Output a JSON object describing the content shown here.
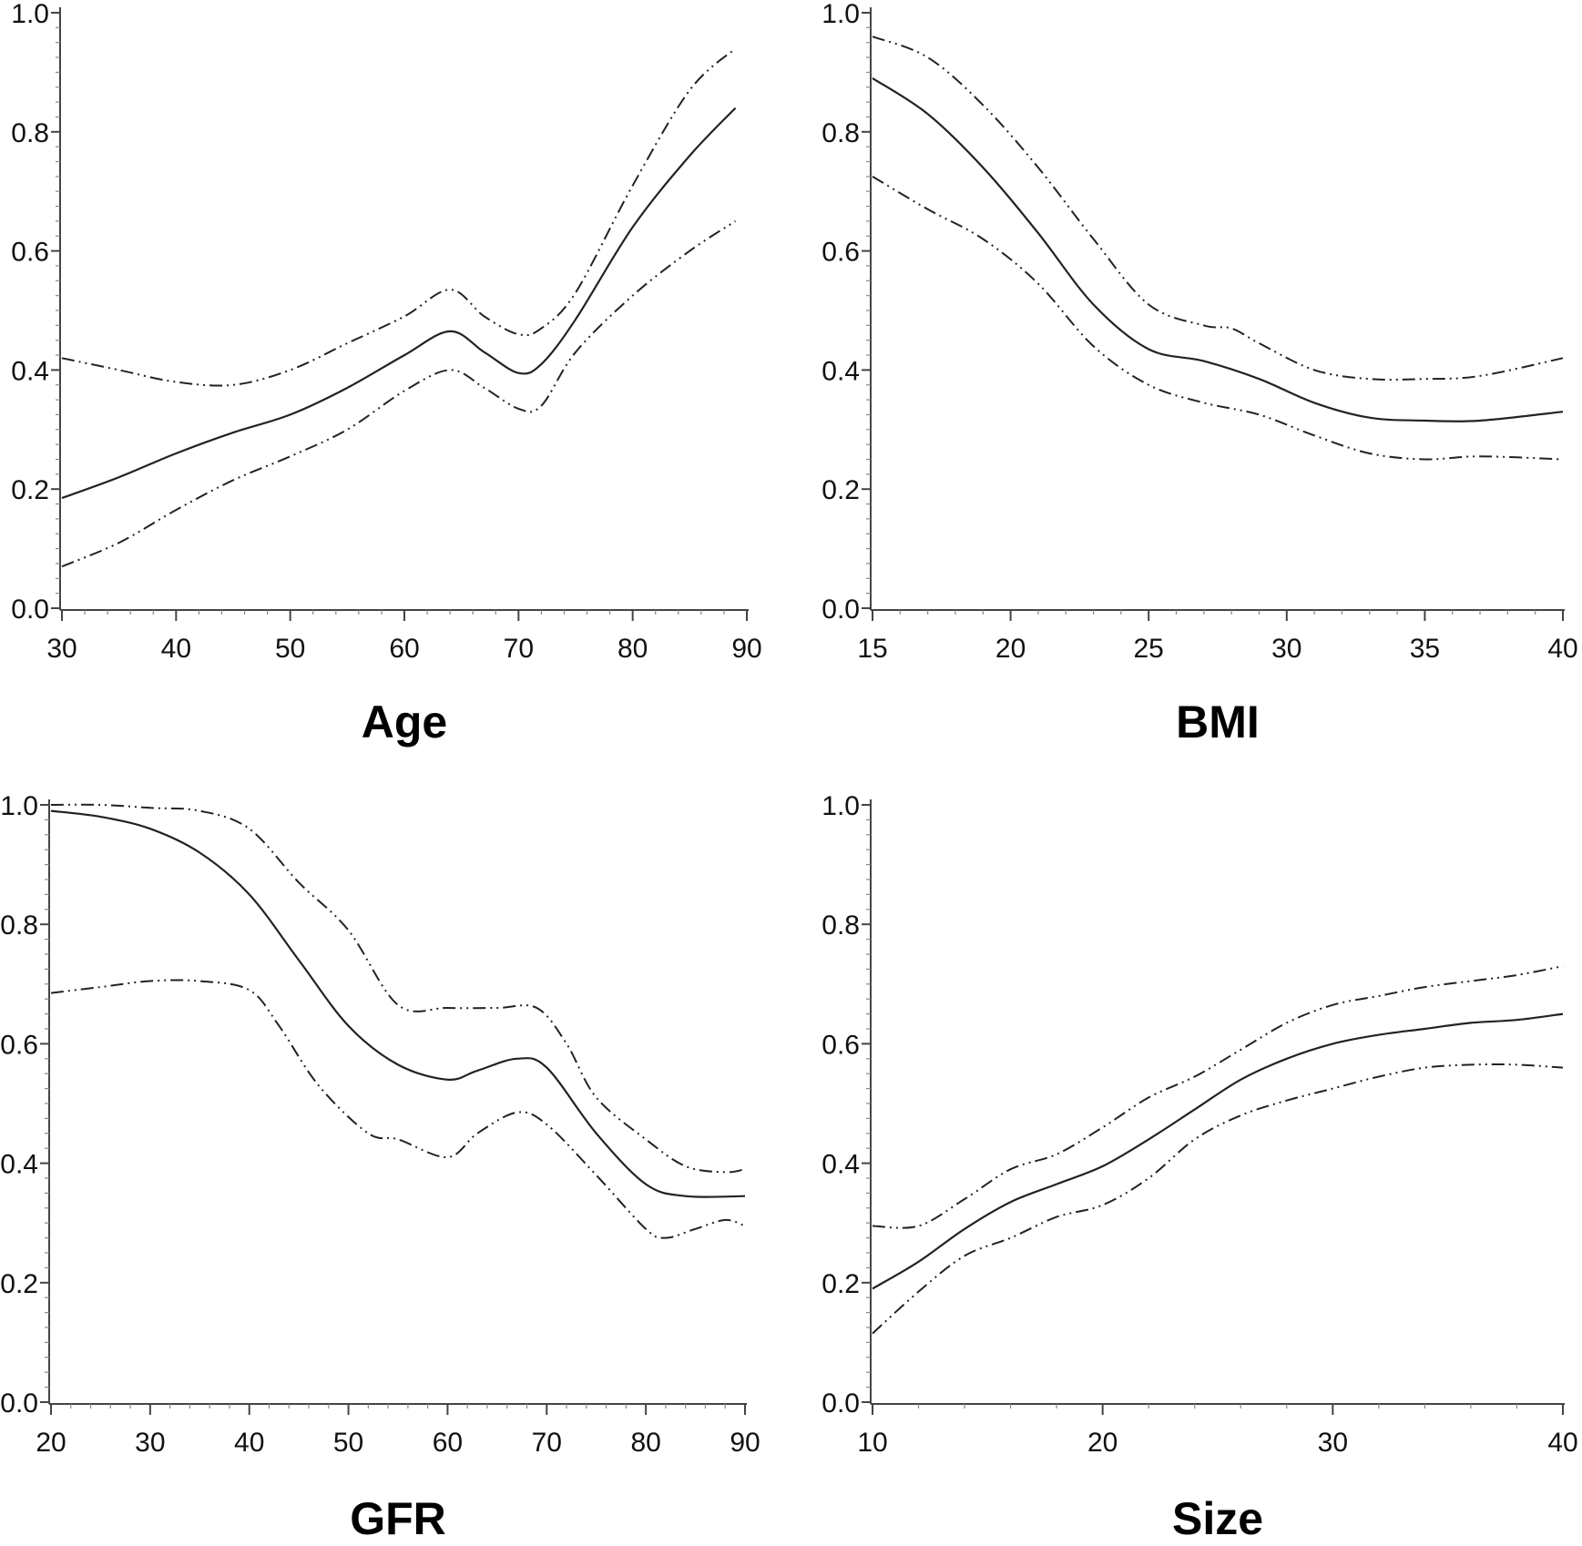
{
  "chart_data": [
    {
      "type": "line",
      "title": "",
      "xlabel": "Age",
      "ylabel": "",
      "xlim": [
        30,
        90
      ],
      "ylim": [
        0.0,
        1.0
      ],
      "xticks": [
        "30",
        "40",
        "50",
        "60",
        "70",
        "80",
        "90"
      ],
      "yticks": [
        "0.0",
        "0.2",
        "0.4",
        "0.6",
        "0.8",
        "1.0"
      ],
      "series": [
        {
          "name": "estimate",
          "style": "solid",
          "x": [
            30,
            35,
            40,
            45,
            50,
            55,
            60,
            64,
            67,
            70,
            72,
            75,
            80,
            85,
            89
          ],
          "y": [
            0.185,
            0.22,
            0.26,
            0.295,
            0.325,
            0.37,
            0.425,
            0.465,
            0.43,
            0.395,
            0.41,
            0.485,
            0.64,
            0.76,
            0.84
          ]
        },
        {
          "name": "upper",
          "style": "dash-dot",
          "x": [
            30,
            35,
            40,
            45,
            50,
            55,
            60,
            64,
            67,
            70,
            72,
            75,
            80,
            85,
            89
          ],
          "y": [
            0.42,
            0.4,
            0.38,
            0.375,
            0.4,
            0.445,
            0.49,
            0.535,
            0.49,
            0.46,
            0.47,
            0.53,
            0.71,
            0.87,
            0.94
          ]
        },
        {
          "name": "lower",
          "style": "dash-dot",
          "x": [
            30,
            35,
            40,
            45,
            50,
            55,
            60,
            64,
            67,
            70,
            72,
            75,
            80,
            85,
            89
          ],
          "y": [
            0.07,
            0.11,
            0.165,
            0.215,
            0.255,
            0.3,
            0.365,
            0.4,
            0.37,
            0.335,
            0.34,
            0.43,
            0.525,
            0.6,
            0.65
          ]
        }
      ]
    },
    {
      "type": "line",
      "title": "",
      "xlabel": "BMI",
      "ylabel": "",
      "xlim": [
        15,
        40
      ],
      "ylim": [
        0.0,
        1.0
      ],
      "xticks": [
        "15",
        "20",
        "25",
        "30",
        "35",
        "40"
      ],
      "yticks": [
        "0.0",
        "0.2",
        "0.4",
        "0.6",
        "0.8",
        "1.0"
      ],
      "series": [
        {
          "name": "estimate",
          "style": "solid",
          "x": [
            15,
            17,
            19,
            21,
            23,
            25,
            27,
            29,
            31,
            33,
            35,
            37,
            40
          ],
          "y": [
            0.89,
            0.83,
            0.74,
            0.63,
            0.51,
            0.435,
            0.415,
            0.385,
            0.345,
            0.32,
            0.315,
            0.315,
            0.33
          ]
        },
        {
          "name": "upper",
          "style": "dash-dot",
          "x": [
            15,
            17,
            19,
            21,
            23,
            25,
            27,
            28,
            29,
            31,
            33,
            35,
            37,
            40
          ],
          "y": [
            0.96,
            0.925,
            0.845,
            0.74,
            0.62,
            0.51,
            0.475,
            0.47,
            0.445,
            0.4,
            0.385,
            0.385,
            0.39,
            0.42
          ]
        },
        {
          "name": "lower",
          "style": "dash-dot",
          "x": [
            15,
            17,
            19,
            21,
            23,
            25,
            27,
            29,
            31,
            33,
            35,
            37,
            40
          ],
          "y": [
            0.725,
            0.67,
            0.62,
            0.545,
            0.44,
            0.375,
            0.345,
            0.325,
            0.29,
            0.26,
            0.25,
            0.255,
            0.25
          ]
        }
      ]
    },
    {
      "type": "line",
      "title": "",
      "xlabel": "GFR",
      "ylabel": "",
      "xlim": [
        20,
        90
      ],
      "ylim": [
        0.0,
        1.0
      ],
      "xticks": [
        "20",
        "30",
        "40",
        "50",
        "60",
        "70",
        "80",
        "90"
      ],
      "yticks": [
        "0.0",
        "0.2",
        "0.4",
        "0.6",
        "0.8",
        "1.0"
      ],
      "series": [
        {
          "name": "estimate",
          "style": "solid",
          "x": [
            20,
            25,
            30,
            35,
            40,
            45,
            50,
            55,
            60,
            63,
            67,
            70,
            75,
            80,
            84,
            90
          ],
          "y": [
            0.99,
            0.98,
            0.96,
            0.92,
            0.85,
            0.74,
            0.63,
            0.565,
            0.54,
            0.555,
            0.575,
            0.56,
            0.45,
            0.365,
            0.345,
            0.345
          ]
        },
        {
          "name": "upper",
          "style": "dash-dot",
          "x": [
            20,
            25,
            30,
            35,
            40,
            45,
            50,
            55,
            60,
            65,
            69,
            72,
            75,
            80,
            84,
            88,
            90
          ],
          "y": [
            1.0,
            1.0,
            0.995,
            0.99,
            0.96,
            0.87,
            0.79,
            0.665,
            0.66,
            0.66,
            0.66,
            0.6,
            0.51,
            0.44,
            0.395,
            0.385,
            0.39
          ]
        },
        {
          "name": "lower",
          "style": "dash-dot",
          "x": [
            20,
            25,
            30,
            35,
            40,
            43,
            47,
            52,
            55,
            60,
            63,
            67,
            70,
            75,
            80,
            82,
            85,
            88,
            90
          ],
          "y": [
            0.685,
            0.695,
            0.705,
            0.705,
            0.69,
            0.63,
            0.53,
            0.45,
            0.44,
            0.41,
            0.45,
            0.485,
            0.465,
            0.38,
            0.29,
            0.275,
            0.29,
            0.305,
            0.295
          ]
        }
      ]
    },
    {
      "type": "line",
      "title": "",
      "xlabel": "Size",
      "ylabel": "",
      "xlim": [
        10,
        40
      ],
      "ylim": [
        0.0,
        1.0
      ],
      "xticks": [
        "10",
        "20",
        "30",
        "40"
      ],
      "yticks": [
        "0.0",
        "0.2",
        "0.4",
        "0.6",
        "0.8",
        "1.0"
      ],
      "series": [
        {
          "name": "estimate",
          "style": "solid",
          "x": [
            10,
            12,
            14,
            16,
            18,
            20,
            22,
            24,
            26,
            28,
            30,
            32,
            34,
            36,
            38,
            40
          ],
          "y": [
            0.19,
            0.235,
            0.29,
            0.335,
            0.365,
            0.395,
            0.44,
            0.49,
            0.54,
            0.575,
            0.6,
            0.615,
            0.625,
            0.635,
            0.64,
            0.65
          ]
        },
        {
          "name": "upper",
          "style": "dash-dot",
          "x": [
            10,
            12,
            14,
            16,
            18,
            20,
            22,
            24,
            26,
            28,
            30,
            32,
            34,
            36,
            38,
            40
          ],
          "y": [
            0.295,
            0.295,
            0.34,
            0.39,
            0.415,
            0.46,
            0.51,
            0.545,
            0.59,
            0.635,
            0.665,
            0.68,
            0.695,
            0.705,
            0.715,
            0.73
          ]
        },
        {
          "name": "lower",
          "style": "dash-dot",
          "x": [
            10,
            12,
            14,
            16,
            18,
            20,
            22,
            24,
            26,
            28,
            30,
            32,
            34,
            36,
            38,
            40
          ],
          "y": [
            0.115,
            0.185,
            0.245,
            0.275,
            0.31,
            0.33,
            0.375,
            0.44,
            0.48,
            0.505,
            0.525,
            0.545,
            0.56,
            0.565,
            0.565,
            0.56
          ]
        }
      ]
    }
  ]
}
